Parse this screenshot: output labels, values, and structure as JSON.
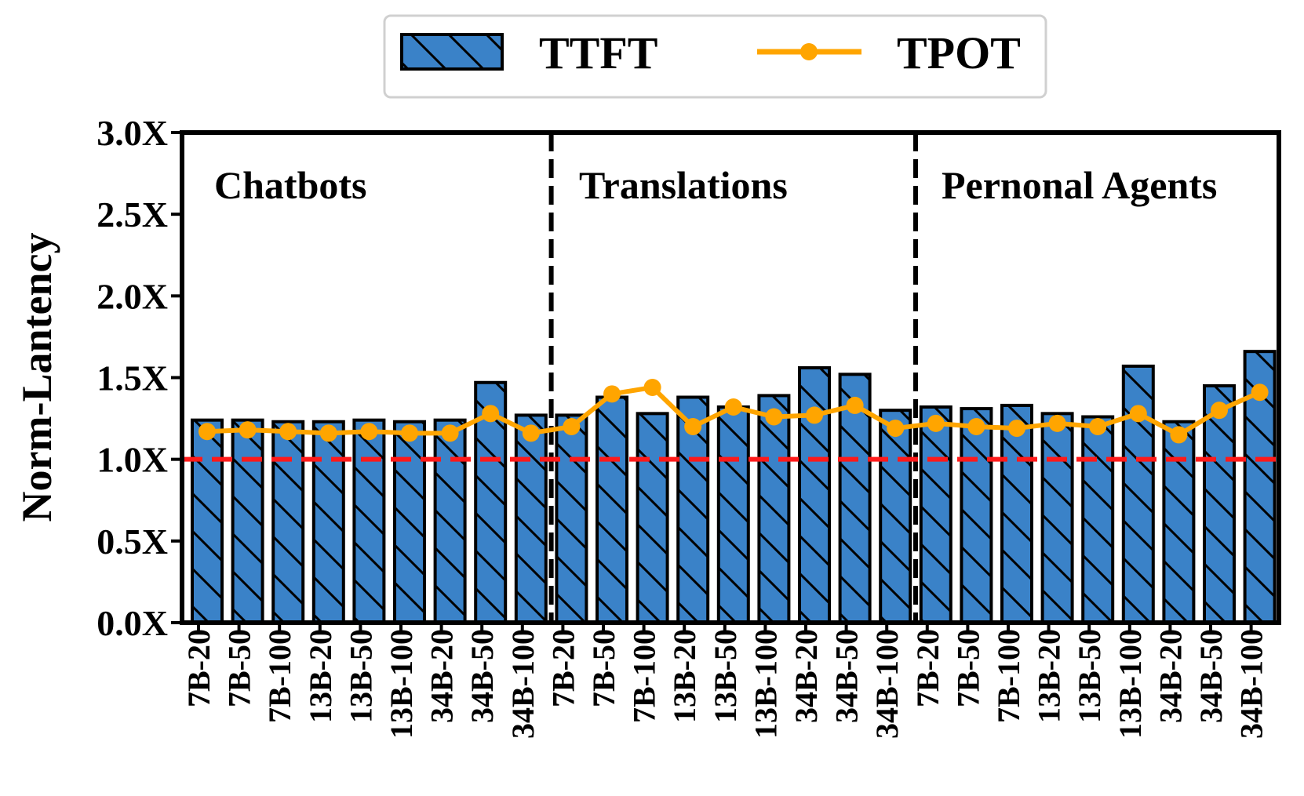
{
  "chart_data": {
    "type": "bar",
    "ylabel": "Norm-Lantency",
    "ylim": [
      0,
      3.0
    ],
    "y_ticks": [
      "0.0X",
      "0.5X",
      "1.0X",
      "1.5X",
      "2.0X",
      "2.5X",
      "3.0X"
    ],
    "y_tick_values": [
      0,
      0.5,
      1.0,
      1.5,
      2.0,
      2.5,
      3.0
    ],
    "reference_line": 1.0,
    "groups": [
      {
        "name": "Chatbots",
        "categories": [
          "7B-20",
          "7B-50",
          "7B-100",
          "13B-20",
          "13B-50",
          "13B-100",
          "34B-20",
          "34B-50",
          "34B-100"
        ]
      },
      {
        "name": "Translations",
        "categories": [
          "7B-20",
          "7B-50",
          "7B-100",
          "13B-20",
          "13B-50",
          "13B-100",
          "34B-20",
          "34B-50",
          "34B-100"
        ]
      },
      {
        "name": "Pernonal Agents",
        "categories": [
          "7B-20",
          "7B-50",
          "7B-100",
          "13B-20",
          "13B-50",
          "13B-100",
          "34B-20",
          "34B-50",
          "34B-100"
        ]
      }
    ],
    "series": [
      {
        "name": "TTFT",
        "kind": "bar",
        "color": "#3a82c8",
        "values": [
          1.24,
          1.24,
          1.23,
          1.23,
          1.24,
          1.23,
          1.24,
          1.47,
          1.27,
          1.27,
          1.38,
          1.28,
          1.38,
          1.32,
          1.39,
          1.56,
          1.52,
          1.3,
          1.32,
          1.31,
          1.33,
          1.28,
          1.26,
          1.57,
          1.23,
          1.45,
          1.66
        ]
      },
      {
        "name": "TPOT",
        "kind": "line",
        "color": "#ffa500",
        "values": [
          1.17,
          1.18,
          1.17,
          1.16,
          1.17,
          1.16,
          1.16,
          1.28,
          1.16,
          1.2,
          1.4,
          1.44,
          1.2,
          1.32,
          1.26,
          1.27,
          1.33,
          1.19,
          1.22,
          1.2,
          1.19,
          1.22,
          1.2,
          1.28,
          1.15,
          1.3,
          1.41
        ]
      }
    ],
    "legend": {
      "position": "top-center",
      "entries": [
        "TTFT",
        "TPOT"
      ]
    }
  }
}
